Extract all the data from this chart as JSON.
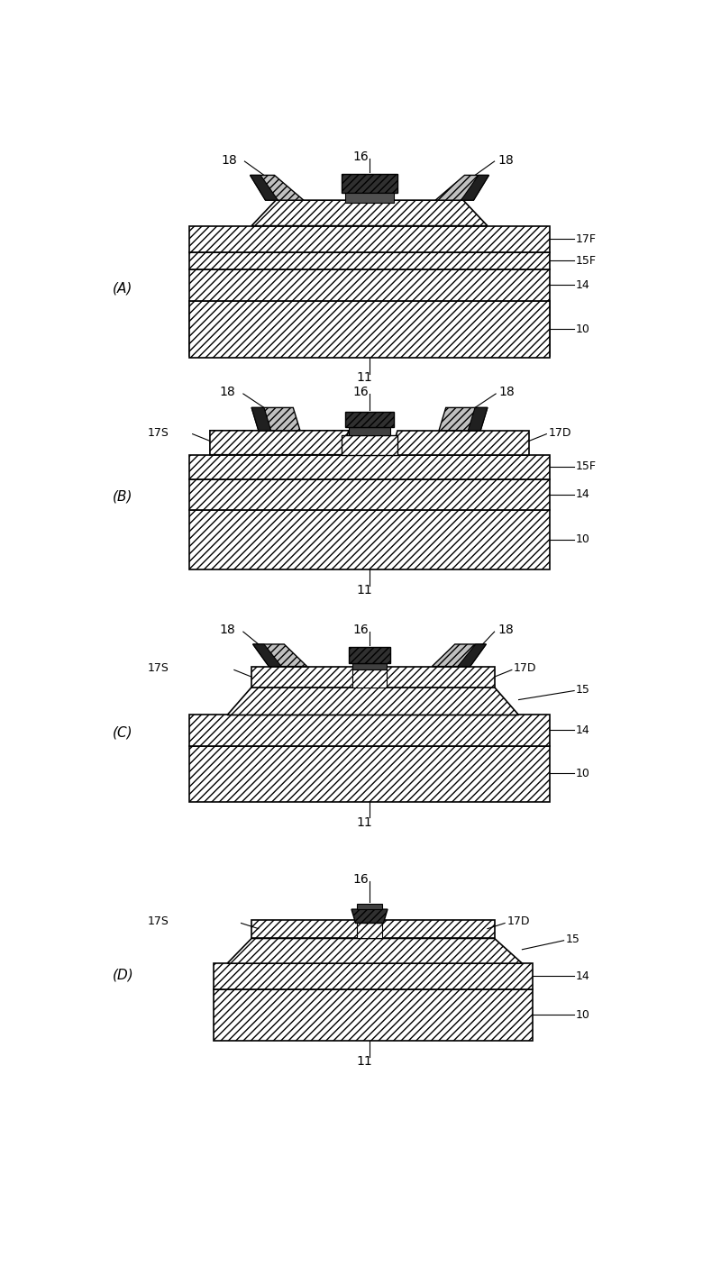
{
  "fig_width": 8.0,
  "fig_height": 14.15,
  "bg_color": "#ffffff",
  "panels": [
    "A",
    "B",
    "C",
    "D"
  ]
}
